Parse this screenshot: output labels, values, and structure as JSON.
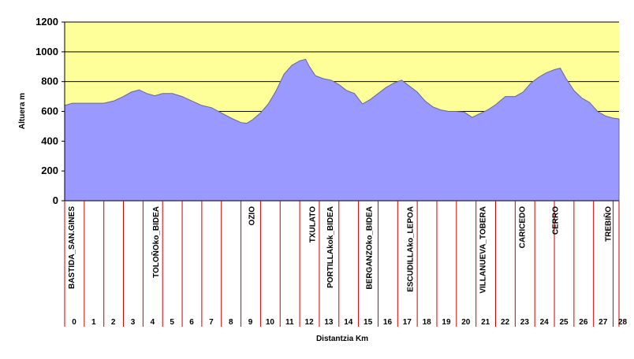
{
  "chart_data": {
    "type": "area",
    "ylabel": "Altuera m",
    "xlabel": "Distantzia Km",
    "ylim": [
      0,
      1200
    ],
    "yticks": [
      0,
      200,
      400,
      600,
      800,
      1000,
      1200
    ],
    "xlim": [
      0,
      28.3
    ],
    "xticks": [
      0,
      1,
      2,
      3,
      4,
      5,
      6,
      7,
      8,
      9,
      10,
      11,
      12,
      13,
      14,
      15,
      16,
      17,
      18,
      19,
      20,
      21,
      22,
      23,
      24,
      25,
      26,
      27,
      28
    ],
    "grid": "horizontal",
    "series": [
      {
        "x": [
          0,
          0.4,
          1,
          1.5,
          2,
          2.5,
          3,
          3.4,
          3.8,
          4.2,
          4.6,
          5,
          5.5,
          6,
          6.5,
          7,
          7.5,
          8,
          8.5,
          9,
          9.3,
          9.6,
          10,
          10.4,
          10.8,
          11.2,
          11.6,
          12,
          12.3,
          12.5,
          12.8,
          13.2,
          13.6,
          14,
          14.4,
          14.8,
          15.2,
          15.6,
          16,
          16.4,
          16.8,
          17.2,
          17.6,
          18,
          18.4,
          18.8,
          19.2,
          19.6,
          20,
          20.4,
          20.8,
          21.2,
          21.6,
          22,
          22.5,
          23,
          23.4,
          23.8,
          24.2,
          24.6,
          25,
          25.3,
          25.6,
          26,
          26.4,
          26.8,
          27.2,
          27.6,
          28,
          28.3
        ],
        "values": [
          640,
          655,
          655,
          655,
          655,
          670,
          700,
          730,
          745,
          720,
          705,
          720,
          720,
          700,
          670,
          640,
          625,
          590,
          555,
          525,
          520,
          545,
          590,
          650,
          740,
          850,
          910,
          940,
          950,
          900,
          840,
          820,
          810,
          780,
          740,
          720,
          650,
          680,
          720,
          760,
          790,
          810,
          770,
          730,
          670,
          630,
          610,
          600,
          600,
          595,
          560,
          585,
          610,
          645,
          700,
          700,
          730,
          790,
          830,
          860,
          880,
          890,
          820,
          740,
          690,
          660,
          600,
          570,
          555,
          550
        ]
      }
    ],
    "waypoints": [
      {
        "label": "BASTIDA_SAN.GINES",
        "x": 0
      },
      {
        "label": "TOLOÑOko_BIDEA",
        "x": 4.3
      },
      {
        "label": "OZIO",
        "x": 9.2
      },
      {
        "label": "TXULATO",
        "x": 12.3
      },
      {
        "label": "PORTILLAkok_BIDEA",
        "x": 13.2
      },
      {
        "label": "BERGANZOko_BIDEA",
        "x": 15.2
      },
      {
        "label": "ESCUDILLAko_LEPOA",
        "x": 17.3
      },
      {
        "label": "VILLANUEVA_TOBERA",
        "x": 21
      },
      {
        "label": "CARICEDO",
        "x": 23
      },
      {
        "label": "CERRO",
        "x": 24.7
      },
      {
        "label": "TREBIÑO",
        "x": 27.4
      }
    ],
    "colors": {
      "plot_background": "#ffff99",
      "area_fill": "#9999ff",
      "area_stroke": "#666699",
      "gridline": "#000000",
      "marker_line": "#cc0000"
    }
  }
}
